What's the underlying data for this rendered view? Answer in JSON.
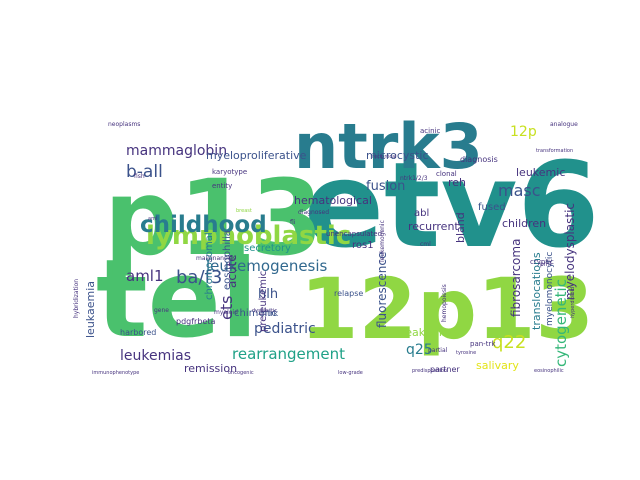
{
  "cloud": {
    "palette": {
      "purple": "#46337e",
      "indigo": "#3b528b",
      "blue": "#31688e",
      "steel": "#287c8e",
      "teal": "#21918c",
      "sea": "#1fa187",
      "green": "#35b779",
      "leaf": "#4ac16d",
      "lime": "#90d743",
      "yellow": "#c8e020",
      "gold": "#e3e418"
    },
    "words": [
      {
        "text": "etv6",
        "color": "teal"
      },
      {
        "text": "tel",
        "color": "leaf"
      },
      {
        "text": "p13",
        "color": "leaf"
      },
      {
        "text": "12p13",
        "color": "lime"
      },
      {
        "text": "ntrk3",
        "color": "steel"
      },
      {
        "text": "lymphoblastic",
        "color": "lime"
      },
      {
        "text": "childhood",
        "color": "steel"
      },
      {
        "text": "leukemogenesis",
        "color": "blue"
      },
      {
        "text": "rearrangement",
        "color": "sea"
      },
      {
        "text": "mammaglobin",
        "color": "purple"
      },
      {
        "text": "cytogenetic",
        "color": "green"
      },
      {
        "text": "b-all",
        "color": "indigo"
      },
      {
        "text": "aml1",
        "color": "purple"
      },
      {
        "text": "ba/f3",
        "color": "indigo"
      },
      {
        "text": "masc",
        "color": "indigo"
      },
      {
        "text": "fusion",
        "color": "indigo"
      },
      {
        "text": "q22",
        "color": "yellow"
      },
      {
        "text": "12p",
        "color": "yellow"
      },
      {
        "text": "ets",
        "color": "purple"
      },
      {
        "text": "hlh",
        "color": "indigo"
      },
      {
        "text": "pediatric",
        "color": "indigo"
      },
      {
        "text": "leukemias",
        "color": "purple"
      },
      {
        "text": "q25",
        "color": "steel"
      },
      {
        "text": "myeloproliferative",
        "color": "indigo"
      },
      {
        "text": "microcystic",
        "color": "indigo"
      },
      {
        "text": "leukemic",
        "color": "purple"
      },
      {
        "text": "hematological",
        "color": "purple"
      },
      {
        "text": "reh",
        "color": "purple"
      },
      {
        "text": "recurrent",
        "color": "purple"
      },
      {
        "text": "breakpoints",
        "color": "lime"
      },
      {
        "text": "fibrosarcoma",
        "color": "purple"
      },
      {
        "text": "myelodysplastic",
        "color": "purple"
      },
      {
        "text": "children",
        "color": "purple"
      },
      {
        "text": "translocations",
        "color": "steel"
      },
      {
        "text": "salivary",
        "color": "gold"
      },
      {
        "text": "remission",
        "color": "purple"
      },
      {
        "text": "leukaemia",
        "color": "indigo"
      },
      {
        "text": "secretory",
        "color": "teal"
      },
      {
        "text": "chimeric",
        "color": "indigo"
      },
      {
        "text": "fluorescence",
        "color": "indigo"
      },
      {
        "text": "bland",
        "color": "purple"
      },
      {
        "text": "abl",
        "color": "purple"
      },
      {
        "text": "fused",
        "color": "indigo"
      },
      {
        "text": "chromosomal",
        "color": "steel"
      },
      {
        "text": "eosinophilia",
        "color": "indigo"
      },
      {
        "text": "acute",
        "color": "purple"
      },
      {
        "text": "preleukemic",
        "color": "purple"
      },
      {
        "text": "myelomonocytic",
        "color": "indigo"
      },
      {
        "text": "ros1",
        "color": "purple"
      },
      {
        "text": "diagnosis",
        "color": "purple"
      },
      {
        "text": "ntrk",
        "color": "indigo"
      },
      {
        "text": "relapse",
        "color": "indigo"
      },
      {
        "text": "harbored",
        "color": "indigo"
      },
      {
        "text": "pdgfrbeta",
        "color": "purple"
      },
      {
        "text": "partner",
        "color": "purple"
      },
      {
        "text": "cryptic",
        "color": "purple"
      },
      {
        "text": "acinic",
        "color": "purple"
      },
      {
        "text": "karyotype",
        "color": "purple"
      },
      {
        "text": "entity",
        "color": "purple"
      },
      {
        "text": "clonal",
        "color": "purple"
      },
      {
        "text": "unencapsulated",
        "color": "purple"
      },
      {
        "text": "leukemogenic",
        "color": "purple"
      },
      {
        "text": "malignancies",
        "color": "purple"
      },
      {
        "text": "diagnosed",
        "color": "purple"
      },
      {
        "text": "partial",
        "color": "purple"
      },
      {
        "text": "neoplasms",
        "color": "purple"
      },
      {
        "text": "analogue",
        "color": "purple"
      },
      {
        "text": "hybridization",
        "color": "purple"
      },
      {
        "text": "myeloid",
        "color": "purple"
      },
      {
        "text": "hemopoiesis",
        "color": "purple"
      },
      {
        "text": "dysplastic",
        "color": "purple"
      },
      {
        "text": "fish",
        "color": "purple"
      },
      {
        "text": "aml",
        "color": "purple"
      },
      {
        "text": "pan-trk",
        "color": "purple"
      },
      {
        "text": "tyrosine",
        "color": "purple"
      },
      {
        "text": "hyperdiploid",
        "color": "purple"
      },
      {
        "text": "predisposition",
        "color": "purple"
      },
      {
        "text": "immunophenotype",
        "color": "purple"
      },
      {
        "text": "low-grade",
        "color": "purple"
      },
      {
        "text": "oncogenic",
        "color": "purple"
      },
      {
        "text": "eosinophilic",
        "color": "purple"
      },
      {
        "text": "transformation",
        "color": "purple"
      },
      {
        "text": "reciprocal",
        "color": "purple"
      },
      {
        "text": "breast",
        "color": "lime"
      },
      {
        "text": "ntrk1/2/3",
        "color": "purple"
      },
      {
        "text": "cml",
        "color": "purple"
      },
      {
        "text": "pml",
        "color": "purple"
      },
      {
        "text": "fli",
        "color": "purple"
      },
      {
        "text": "gene",
        "color": "purple"
      }
    ]
  }
}
